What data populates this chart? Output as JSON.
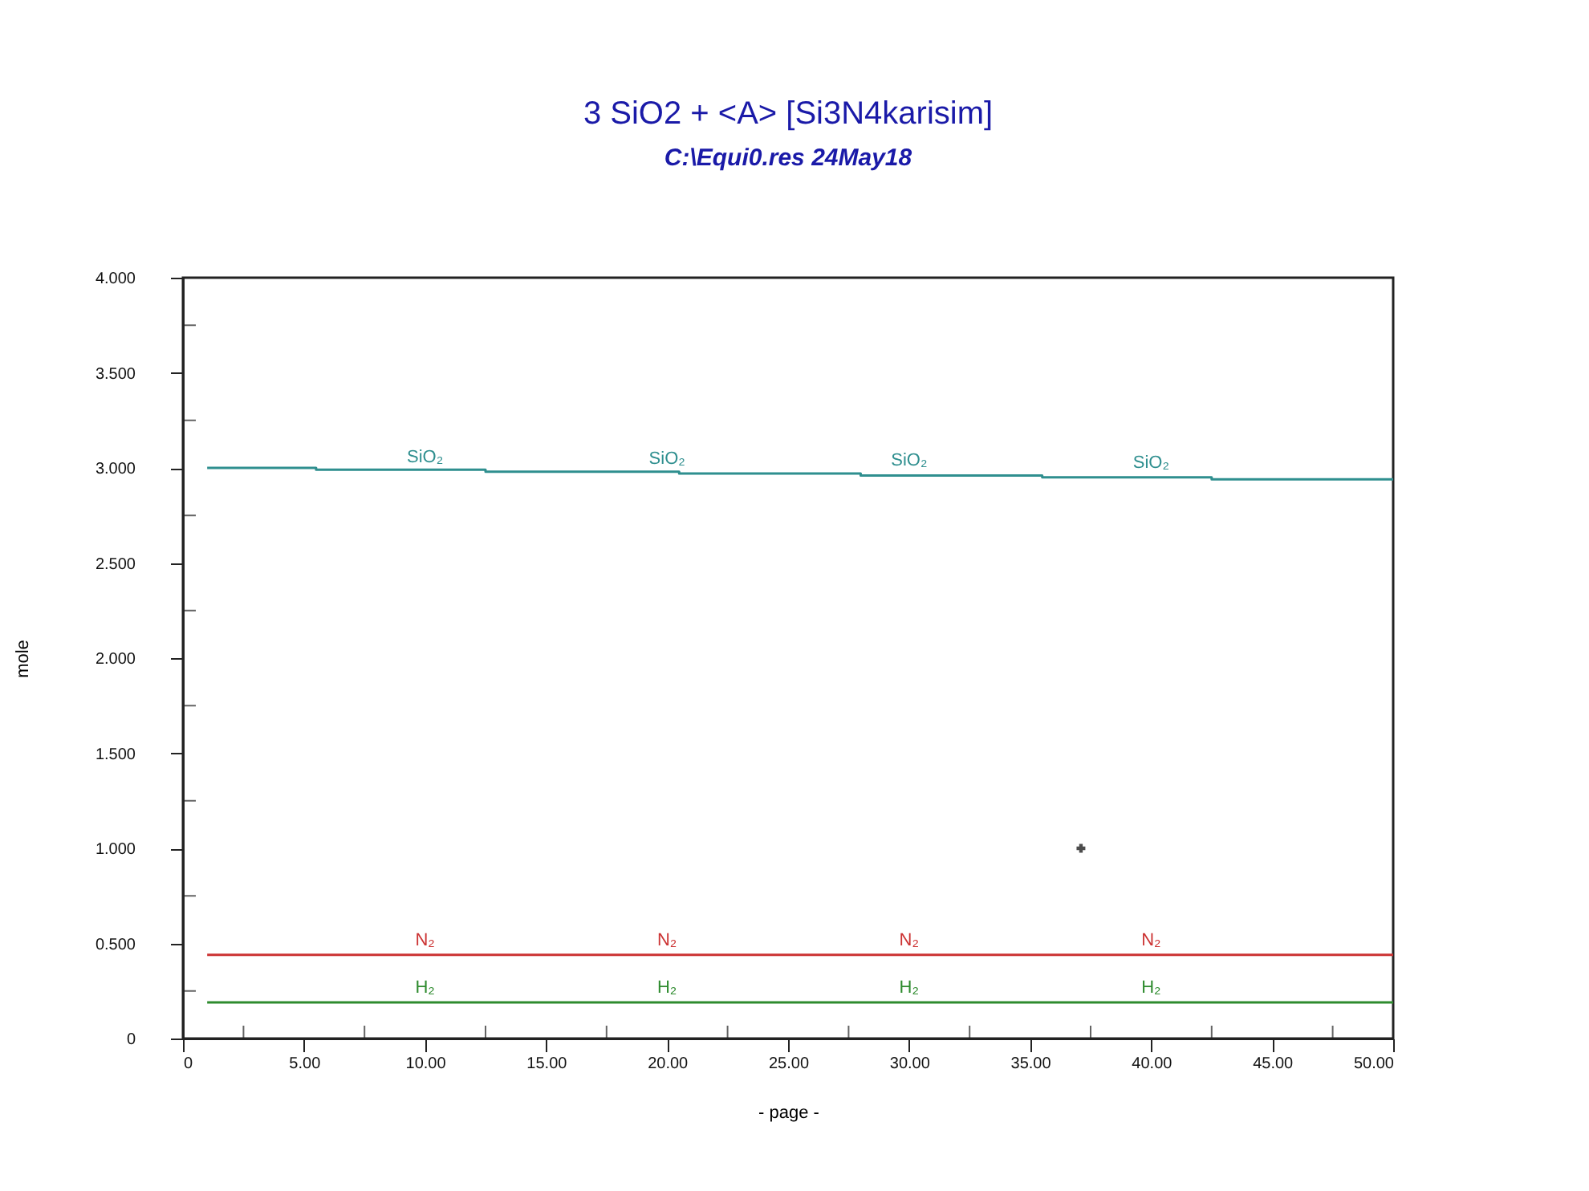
{
  "chart_data": {
    "type": "line",
    "title": "3 SiO2 +  <A> [Si3N4karisim]",
    "subtitle": "C:\\Equi0.res  24May18",
    "xlabel": "- page -",
    "ylabel": "mole",
    "xlim": [
      0,
      50
    ],
    "ylim": [
      0,
      4
    ],
    "xticks": [
      0,
      {
        "value": 2.5,
        "label": null
      },
      {
        "value": 5,
        "label": "5.00"
      },
      {
        "value": 7.5,
        "label": null
      },
      {
        "value": 10,
        "label": "10.00"
      },
      {
        "value": 12.5,
        "label": null
      },
      {
        "value": 15,
        "label": "15.00"
      },
      {
        "value": 17.5,
        "label": null
      },
      {
        "value": 20,
        "label": "20.00"
      },
      {
        "value": 22.5,
        "label": null
      },
      {
        "value": 25,
        "label": "25.00"
      },
      {
        "value": 27.5,
        "label": null
      },
      {
        "value": 30,
        "label": "30.00"
      },
      {
        "value": 32.5,
        "label": null
      },
      {
        "value": 35,
        "label": "35.00"
      },
      {
        "value": 37.5,
        "label": null
      },
      {
        "value": 40,
        "label": "40.00"
      },
      {
        "value": 42.5,
        "label": null
      },
      {
        "value": 45,
        "label": "45.00"
      },
      {
        "value": 47.5,
        "label": null
      },
      {
        "value": 50,
        "label": "50.00"
      }
    ],
    "yticks": [
      0,
      {
        "value": 0.25,
        "label": null
      },
      {
        "value": 0.5,
        "label": "0.500"
      },
      {
        "value": 0.75,
        "label": null
      },
      {
        "value": 1,
        "label": "1.000"
      },
      {
        "value": 1.25,
        "label": null
      },
      {
        "value": 1.5,
        "label": "1.500"
      },
      {
        "value": 1.75,
        "label": null
      },
      {
        "value": 2,
        "label": "2.000"
      },
      {
        "value": 2.25,
        "label": null
      },
      {
        "value": 2.5,
        "label": "2.500"
      },
      {
        "value": 2.75,
        "label": null
      },
      {
        "value": 3,
        "label": "3.000"
      },
      {
        "value": 3.25,
        "label": null
      },
      {
        "value": 3.5,
        "label": "3.500"
      },
      {
        "value": 3.75,
        "label": null
      },
      {
        "value": 4,
        "label": "4.000"
      }
    ],
    "grid": false,
    "line_style": "solid",
    "marker": "none",
    "series": [
      {
        "type": "step",
        "color": "#2f8f8f",
        "x": [
          1,
          5.5,
          12.5,
          20.5,
          28,
          35.5,
          42.5,
          50
        ],
        "values": [
          3.0,
          2.99,
          2.98,
          2.97,
          2.96,
          2.95,
          2.94,
          2.94
        ]
      },
      {
        "color": "#cc3333",
        "x": [
          1,
          50
        ],
        "values": [
          0.44,
          0.44
        ]
      },
      {
        "color": "#2e8b2e",
        "x": [
          1,
          50
        ],
        "values": [
          0.19,
          0.19
        ]
      },
      {
        "type": "scatter",
        "color": "#000000",
        "marker": "cross",
        "x": [
          37.1
        ],
        "values": [
          1.0
        ]
      }
    ],
    "annotations": [
      {
        "text": "SiO₂",
        "x": 10,
        "y": 2.98
      },
      {
        "text": "SiO₂",
        "x": 20,
        "y": 2.97
      },
      {
        "text": "SiO₂",
        "x": 30,
        "y": 2.96
      },
      {
        "text": "SiO₂",
        "x": 40,
        "y": 2.95
      },
      {
        "text": "N₂",
        "x": 10,
        "y": 0.44
      },
      {
        "text": "N₂",
        "x": 20,
        "y": 0.44
      },
      {
        "text": "N₂",
        "x": 30,
        "y": 0.44
      },
      {
        "text": "N₂",
        "x": 40,
        "y": 0.44
      },
      {
        "text": "H₂",
        "x": 10,
        "y": 0.19
      },
      {
        "text": "H₂",
        "x": 20,
        "y": 0.19
      },
      {
        "text": "H₂",
        "x": 30,
        "y": 0.19
      },
      {
        "text": "H₂",
        "x": 40,
        "y": 0.19
      }
    ]
  }
}
